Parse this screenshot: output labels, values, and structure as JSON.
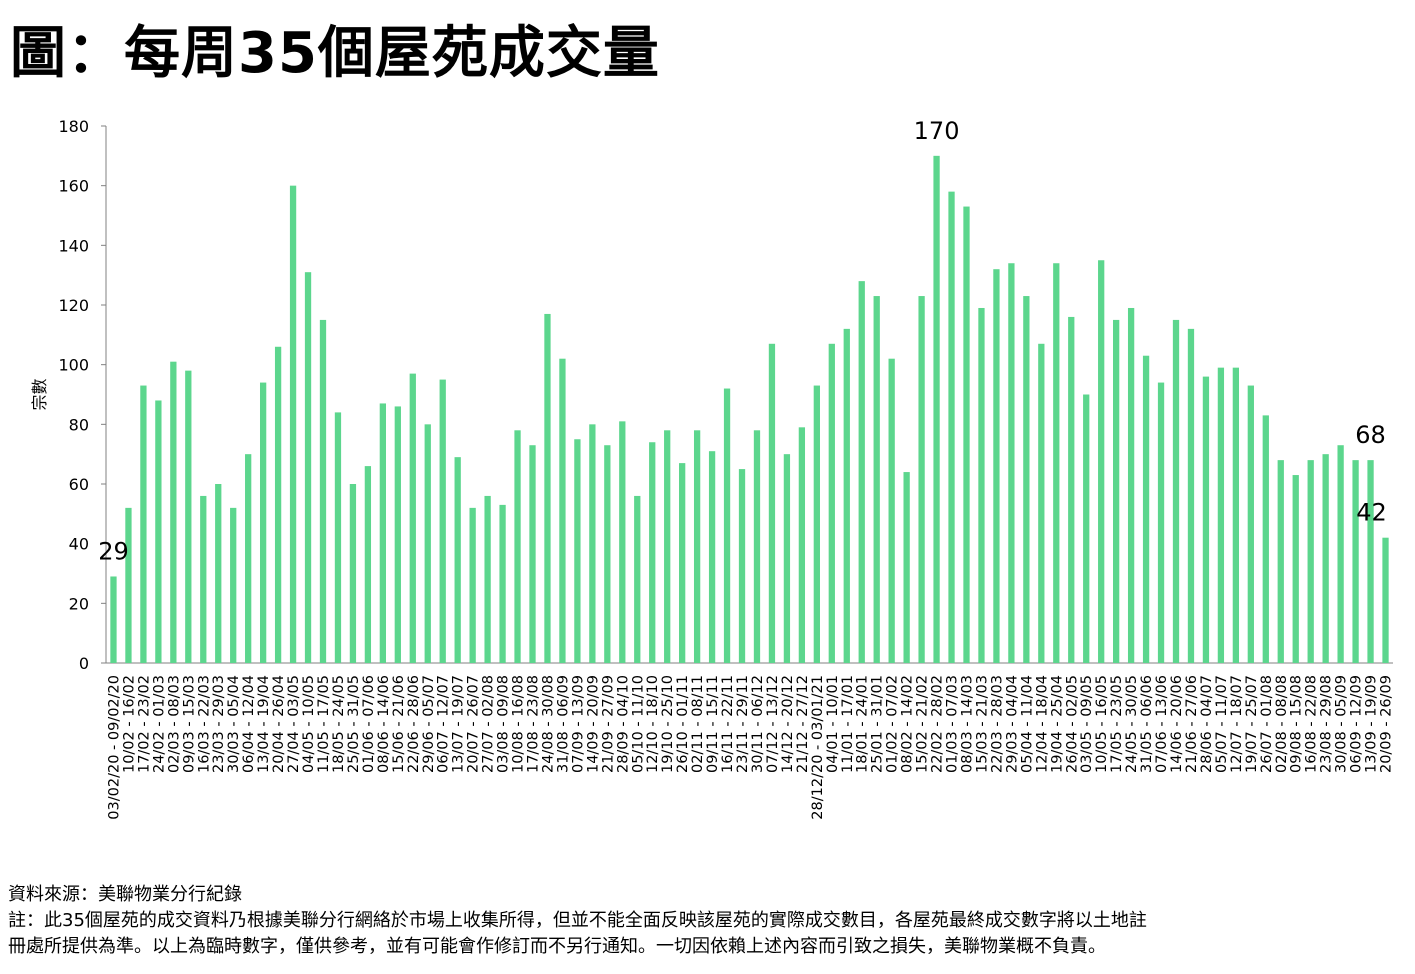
{
  "title": "圖：每周35個屋苑成交量",
  "footer": {
    "source": "資料來源：美聯物業分行紀錄",
    "note_line1": "註：此35個屋苑的成交資料乃根據美聯分行網絡於市場上收集所得，但並不能全面反映該屋苑的實際成交數目，各屋苑最終成交數字將以土地註",
    "note_line2": "冊處所提供為準。以上為臨時數字，僅供參考，並有可能會作修訂而不另行通知。一切因依賴上述內容而引致之損失，美聯物業概不負責。"
  },
  "colors": {
    "bar": "#5cd68d",
    "axis": "#808080"
  },
  "chart_data": {
    "type": "bar",
    "title": "",
    "xlabel": "",
    "ylabel": "宗數",
    "ylim": [
      0,
      180
    ],
    "yticks": [
      0,
      20,
      40,
      60,
      80,
      100,
      120,
      140,
      160,
      180
    ],
    "grid": false,
    "legend": "none",
    "categories": [
      "03/02/20 - 09/02/20",
      "10/02 - 16/02",
      "17/02 - 23/02",
      "24/02 - 01/03",
      "02/03 - 08/03",
      "09/03 - 15/03",
      "16/03 - 22/03",
      "23/03 - 29/03",
      "30/03 - 05/04",
      "06/04 - 12/04",
      "13/04 - 19/04",
      "20/04 - 26/04",
      "27/04 - 03/05",
      "04/05 - 10/05",
      "11/05 - 17/05",
      "18/05 - 24/05",
      "25/05 - 31/05",
      "01/06 - 07/06",
      "08/06 - 14/06",
      "15/06 - 21/06",
      "22/06 - 28/06",
      "29/06 - 05/07",
      "06/07 - 12/07",
      "13/07 - 19/07",
      "20/07 - 26/07",
      "27/07 - 02/08",
      "03/08 - 09/08",
      "10/08 - 16/08",
      "17/08 - 23/08",
      "24/08 - 30/08",
      "31/08 - 06/09",
      "07/09 - 13/09",
      "14/09 - 20/09",
      "21/09 - 27/09",
      "28/09 - 04/10",
      "05/10 - 11/10",
      "12/10 - 18/10",
      "19/10 - 25/10",
      "26/10 - 01/11",
      "02/11 - 08/11",
      "09/11 - 15/11",
      "16/11 - 22/11",
      "23/11 - 29/11",
      "30/11 - 06/12",
      "07/12 - 13/12",
      "14/12 - 20/12",
      "21/12 - 27/12",
      "28/12/20 - 03/01/21",
      "04/01 - 10/01",
      "11/01 - 17/01",
      "18/01 - 24/01",
      "25/01 - 31/01",
      "01/02 - 07/02",
      "08/02 - 14/02",
      "15/02 - 21/02",
      "22/02 - 28/02",
      "01/03 - 07/03",
      "08/03 - 14/03",
      "15/03 - 21/03",
      "22/03 - 28/03",
      "29/03 - 04/04",
      "05/04 - 11/04",
      "12/04 - 18/04",
      "19/04 - 25/04",
      "26/04 - 02/05",
      "03/05 - 09/05",
      "10/05 - 16/05",
      "17/05 - 23/05",
      "24/05 - 30/05",
      "31/05 - 06/06",
      "07/06 - 13/06",
      "14/06 - 20/06",
      "21/06 - 27/06",
      "28/06 - 04/07",
      "05/07 - 11/07",
      "12/07 - 18/07",
      "19/07 - 25/07",
      "26/07 - 01/08",
      "02/08 - 08/08",
      "09/08 - 15/08",
      "16/08 - 22/08",
      "23/08 - 29/08",
      "30/08 - 05/09",
      "06/09 - 12/09",
      "13/09 - 19/09",
      "20/09 - 26/09"
    ],
    "values": [
      29,
      52,
      93,
      88,
      101,
      98,
      56,
      60,
      52,
      70,
      94,
      106,
      160,
      131,
      115,
      84,
      60,
      66,
      87,
      86,
      97,
      80,
      95,
      69,
      52,
      56,
      53,
      78,
      73,
      117,
      102,
      75,
      80,
      73,
      81,
      56,
      74,
      78,
      67,
      78,
      71,
      92,
      65,
      78,
      107,
      70,
      79,
      93,
      107,
      112,
      128,
      123,
      102,
      64,
      123,
      170,
      158,
      153,
      119,
      132,
      134,
      123,
      107,
      134,
      116,
      90,
      135,
      115,
      119,
      103,
      94,
      115,
      112,
      96,
      99,
      99,
      93,
      83,
      68,
      63,
      68,
      70,
      73,
      68,
      68,
      42
    ],
    "annotations": [
      {
        "index": 0,
        "text": "29"
      },
      {
        "index": 55,
        "text": "170"
      },
      {
        "index": 84,
        "text": "68"
      },
      {
        "index": 85,
        "text": "42"
      }
    ]
  }
}
